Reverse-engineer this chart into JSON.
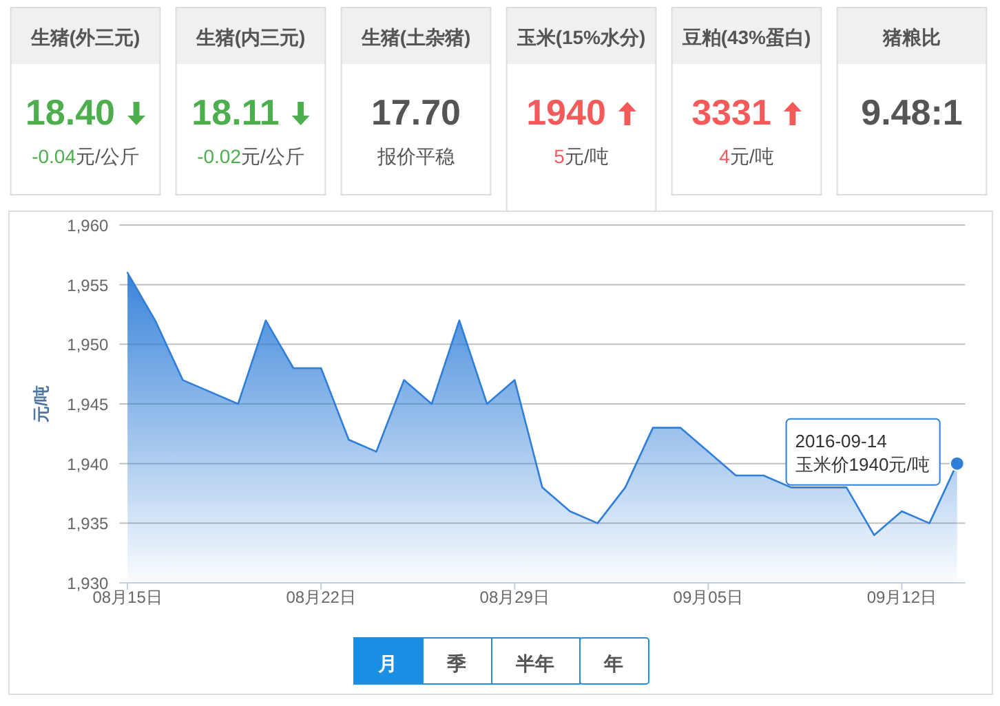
{
  "chart_data": [
    {
      "type": "other",
      "title": "生猪(外三元)",
      "annotations": [
        "18.40",
        "元/公斤"
      ],
      "values": [
        -0.04
      ],
      "value_labels": [
        "-0.04"
      ],
      "color": "#4cae4c"
    },
    {
      "type": "other",
      "title": "生猪(内三元)",
      "annotations": [
        "18.11",
        "元/公斤"
      ],
      "values": [
        -0.02
      ],
      "value_labels": [
        "-0.02"
      ],
      "color": "#4cae4c"
    },
    {
      "type": "other",
      "title": "生猪(土杂猪)",
      "annotations": [
        "17.70",
        "报价平稳"
      ],
      "color": "#555555"
    },
    {
      "type": "other",
      "title": "玉米(15%水分)",
      "annotations": [
        "1940",
        "元/吨"
      ],
      "values": [
        5
      ],
      "value_labels": [
        "5"
      ],
      "color": "#f55a5a"
    },
    {
      "type": "other",
      "title": "豆粕(43%蛋白)",
      "annotations": [
        "3331",
        "元/吨"
      ],
      "values": [
        4
      ],
      "value_labels": [
        "4"
      ],
      "color": "#f55a5a"
    },
    {
      "type": "other",
      "title": "猪粮比",
      "annotations": [
        "9.48:1"
      ],
      "color": "#555555"
    },
    {
      "type": "area",
      "x": [
        "2016-08-15",
        "2016-08-16",
        "2016-08-17",
        "2016-08-18",
        "2016-08-19",
        "2016-08-20",
        "2016-08-21",
        "2016-08-22",
        "2016-08-23",
        "2016-08-24",
        "2016-08-25",
        "2016-08-26",
        "2016-08-27",
        "2016-08-28",
        "2016-08-29",
        "2016-08-30",
        "2016-08-31",
        "2016-09-01",
        "2016-09-02",
        "2016-09-03",
        "2016-09-04",
        "2016-09-05",
        "2016-09-06",
        "2016-09-07",
        "2016-09-08",
        "2016-09-09",
        "2016-09-10",
        "2016-09-11",
        "2016-09-12",
        "2016-09-13",
        "2016-09-14"
      ],
      "values": [
        1956,
        1952,
        1947,
        1946,
        1945,
        1952,
        1948,
        1948,
        1942,
        1941,
        1947,
        1945,
        1952,
        1945,
        1947,
        1938,
        1936,
        1935,
        1938,
        1943,
        1943,
        1941,
        1939,
        1939,
        1938,
        1938,
        1938,
        1934,
        1936,
        1935,
        1940
      ],
      "color": "#2f7ed8",
      "xlim": [
        "2016-08-14T17:00",
        "2016-09-14T07:00"
      ],
      "xticks": [
        {
          "value": "2016-08-15",
          "label": "08月15日"
        },
        {
          "value": "2016-08-22",
          "label": "08月22日"
        },
        {
          "value": "2016-08-29",
          "label": "08月29日"
        },
        {
          "value": "2016-09-05",
          "label": "09月05日"
        },
        {
          "value": "2016-09-12",
          "label": "09月12日"
        }
      ],
      "ylim": [
        1930,
        1960
      ],
      "yticks": [
        {
          "value": 1930,
          "label": "1,930"
        },
        {
          "value": 1935,
          "label": "1,935"
        },
        {
          "value": 1940,
          "label": "1,940"
        },
        {
          "value": 1945,
          "label": "1,945"
        },
        {
          "value": 1950,
          "label": "1,950"
        },
        {
          "value": 1955,
          "label": "1,955"
        },
        {
          "value": 1960,
          "label": "1,960"
        }
      ],
      "ylabel": "元/吨",
      "grid": "y",
      "annotations": [
        "2016-09-14",
        "玉米价1940元/吨"
      ]
    },
    {
      "type": "other",
      "annotations": [
        "月",
        "季",
        "半年",
        "年"
      ]
    }
  ]
}
